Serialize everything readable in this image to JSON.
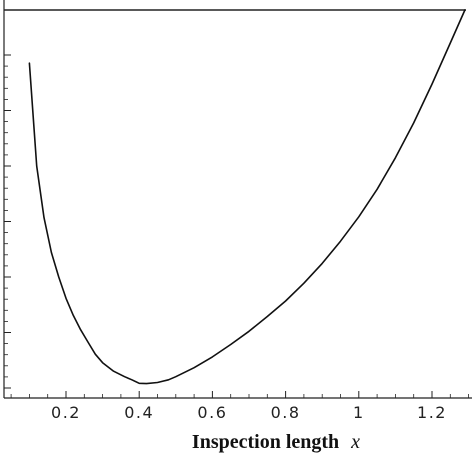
{
  "chart_data": {
    "type": "line",
    "title": "",
    "xlabel": "Inspection length",
    "xlabel_variable": "x",
    "ylabel": "",
    "xlim": [
      0.0,
      1.3
    ],
    "x_ticks": [
      0.2,
      0.4,
      0.6,
      0.8,
      1.0,
      1.2
    ],
    "x_tick_labels": [
      "0.2",
      "0.4",
      "0.6",
      "0.8",
      "1",
      "1.2"
    ],
    "y_tick_labels": [],
    "reference_line": true,
    "grid": false,
    "legend": "none",
    "series": [
      {
        "color": "#111111",
        "x": [
          0.1,
          0.12,
          0.14,
          0.16,
          0.18,
          0.2,
          0.22,
          0.24,
          0.26,
          0.28,
          0.3,
          0.33,
          0.36,
          0.38,
          0.4,
          0.42,
          0.45,
          0.48,
          0.5,
          0.55,
          0.6,
          0.65,
          0.7,
          0.75,
          0.8,
          0.85,
          0.9,
          0.95,
          1.0,
          1.05,
          1.1,
          1.15,
          1.2,
          1.25,
          1.29
        ],
        "y": [
          0.863,
          0.598,
          0.465,
          0.375,
          0.312,
          0.257,
          0.213,
          0.176,
          0.144,
          0.113,
          0.091,
          0.069,
          0.055,
          0.047,
          0.038,
          0.037,
          0.04,
          0.047,
          0.055,
          0.078,
          0.106,
          0.138,
          0.172,
          0.21,
          0.25,
          0.296,
          0.347,
          0.404,
          0.467,
          0.538,
          0.619,
          0.709,
          0.809,
          0.915,
          1.0
        ]
      }
    ]
  }
}
